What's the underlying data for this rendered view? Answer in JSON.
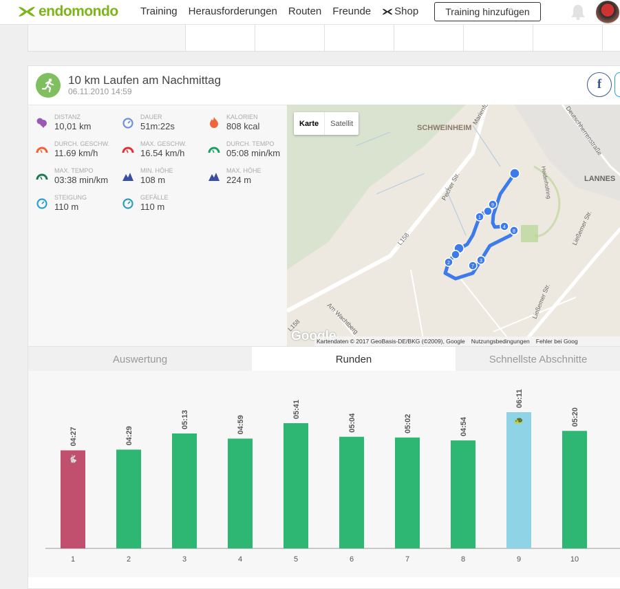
{
  "header": {
    "brand": "endomondo",
    "nav": [
      "Training",
      "Herausforderungen",
      "Routen",
      "Freunde",
      "Shop"
    ],
    "add_button": "Training hinzufügen"
  },
  "workout": {
    "title": "10 km Laufen am Nachmittag",
    "date": "06.11.2010 14:59",
    "share": {
      "facebook": "f"
    }
  },
  "stats": [
    {
      "label": "Distanz",
      "value": "10,01 km",
      "icon": "location-pins-icon",
      "color": "#9b59b6"
    },
    {
      "label": "Dauer",
      "value": "51m:22s",
      "icon": "stopwatch-icon",
      "color": "#6d8fe0"
    },
    {
      "label": "Kalorien",
      "value": "808 kcal",
      "icon": "flame-icon",
      "color": "#f0643c"
    },
    {
      "label": "Durch. Geschw.",
      "value": "11.69 km/h",
      "icon": "speedometer-icon",
      "color": "#f06030"
    },
    {
      "label": "Max. Geschw.",
      "value": "16.54 km/h",
      "icon": "speedometer-icon",
      "color": "#e03030"
    },
    {
      "label": "Durch. Tempo",
      "value": "05:08 min/km",
      "icon": "pace-gauge-icon",
      "color": "#1aa060"
    },
    {
      "label": "Max. Tempo",
      "value": "03:38 min/km",
      "icon": "pace-gauge-icon",
      "color": "#1a7a50"
    },
    {
      "label": "Min. Höhe",
      "value": "108 m",
      "icon": "mountain-small-icon",
      "color": "#3a4fa0"
    },
    {
      "label": "Max. Höhe",
      "value": "224 m",
      "icon": "mountain-icon",
      "color": "#3a4fa0"
    },
    {
      "label": "Steigung",
      "value": "110 m",
      "icon": "ascent-compass-icon",
      "color": "#2a9fd0"
    },
    {
      "label": "Gefälle",
      "value": "110 m",
      "icon": "descent-compass-icon",
      "color": "#2aa0b0"
    }
  ],
  "map": {
    "types": [
      "Karte",
      "Satellit"
    ],
    "labels": [
      "SCHWEINHEIM",
      "LANNES",
      "Pecher Str.",
      "L158",
      "L158",
      "Am Wachtberg",
      "Ließemer Str.",
      "Ließemer Str.",
      "Heiderhofring",
      "Deutschherrenstraße",
      "Marienfo"
    ],
    "google": "Google",
    "attribution": [
      "Kartendaten © 2017 GeoBasis-DE/BKG (©2009), Google",
      "Nutzungsbedingungen",
      "Fehler bei Goog"
    ]
  },
  "tabs": [
    "Auswertung",
    "Runden",
    "Schnellste Abschnitte"
  ],
  "chart_data": {
    "type": "bar",
    "title": "Runden",
    "categories": [
      "1",
      "2",
      "3",
      "4",
      "5",
      "6",
      "7",
      "8",
      "9",
      "10"
    ],
    "labels": [
      "04:27",
      "04:29",
      "05:13",
      "04:59",
      "05:41",
      "05:04",
      "05:02",
      "04:54",
      "06:11",
      "05:20"
    ],
    "values": [
      267,
      269,
      313,
      299,
      341,
      304,
      302,
      294,
      371,
      320
    ],
    "unit": "seconds per lap",
    "highlight": {
      "fastest": {
        "index": 0,
        "color": "#c0506e"
      },
      "slowest": {
        "index": 8,
        "color": "#8fd3e6"
      }
    },
    "color": "#2eb673",
    "ylim": [
      0,
      380
    ]
  }
}
